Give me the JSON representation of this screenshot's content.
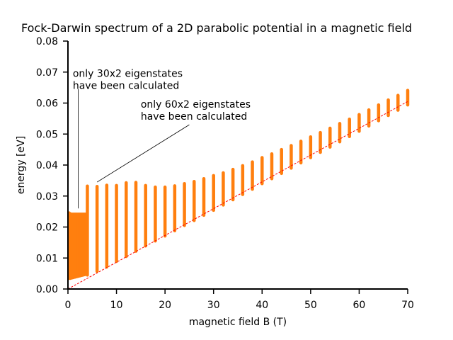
{
  "chart_data": {
    "type": "scatter",
    "title": "Fock-Darwin spectrum of a 2D parabolic potential in a magnetic field",
    "xlabel": "magnetic field B (T)",
    "ylabel": "energy [eV]",
    "xlim": [
      0,
      70
    ],
    "ylim": [
      0,
      0.08
    ],
    "xticks": [
      0,
      10,
      20,
      30,
      40,
      50,
      60,
      70
    ],
    "yticks": [
      "0.00",
      "0.01",
      "0.02",
      "0.03",
      "0.04",
      "0.05",
      "0.06",
      "0.07",
      "0.08"
    ],
    "grid": false,
    "point_color": "#ff7f0e",
    "line_color": "#ff0000",
    "dense_region": {
      "B": [
        0,
        0.25,
        0.5,
        0.75,
        1,
        1.25,
        1.5,
        1.75,
        2,
        2.25,
        2.5,
        2.75,
        3,
        3.25,
        3.5
      ],
      "min": [
        0.0035,
        0.0035,
        0.0036,
        0.0037,
        0.0038,
        0.0039,
        0.004,
        0.0041,
        0.0042,
        0.0043,
        0.0044,
        0.0045,
        0.0046,
        0.0047,
        0.0048
      ],
      "max": [
        0.0245,
        0.0242,
        0.0241,
        0.0241,
        0.0241,
        0.0241,
        0.0241,
        0.0241,
        0.0241,
        0.0241,
        0.0241,
        0.0241,
        0.0241,
        0.0241,
        0.0241
      ]
    },
    "columns": {
      "B": [
        4,
        6,
        8,
        10,
        12,
        14,
        16,
        18,
        20,
        22,
        24,
        26,
        28,
        30,
        32,
        34,
        36,
        38,
        40,
        42,
        44,
        46,
        48,
        50,
        52,
        54,
        56,
        58,
        60,
        62,
        64,
        66,
        68,
        70
      ],
      "min": [
        0.0045,
        0.0057,
        0.0071,
        0.0089,
        0.0105,
        0.0122,
        0.0139,
        0.0155,
        0.0171,
        0.0188,
        0.0205,
        0.0221,
        0.0238,
        0.0254,
        0.0271,
        0.0288,
        0.0305,
        0.0322,
        0.034,
        0.0356,
        0.0373,
        0.039,
        0.0407,
        0.0424,
        0.0441,
        0.0458,
        0.0475,
        0.0492,
        0.0509,
        0.0526,
        0.0543,
        0.056,
        0.0577,
        0.0594
      ],
      "max": [
        0.0332,
        0.0331,
        0.0335,
        0.0334,
        0.0343,
        0.0344,
        0.0334,
        0.0329,
        0.0329,
        0.0333,
        0.034,
        0.0347,
        0.0356,
        0.0366,
        0.0375,
        0.0386,
        0.0398,
        0.041,
        0.0424,
        0.0436,
        0.045,
        0.0463,
        0.0477,
        0.0491,
        0.0505,
        0.0519,
        0.0534,
        0.0548,
        0.0563,
        0.0578,
        0.0594,
        0.061,
        0.0625,
        0.0641
      ]
    },
    "reference_line": {
      "B": [
        0,
        70
      ],
      "E": [
        0,
        0.0605
      ],
      "style": "dashed"
    },
    "annotations": [
      {
        "lines": [
          "only 30x2 eigenstates",
          "have been calculated"
        ],
        "text_at": [
          1,
          0.0685
        ],
        "line_from": [
          2.1,
          0.0645
        ],
        "line_to": [
          2.1,
          0.026
        ]
      },
      {
        "lines": [
          "only 60x2 eigenstates",
          "have been calculated"
        ],
        "text_at": [
          15,
          0.0585
        ],
        "line_from": [
          25,
          0.053
        ],
        "line_to": [
          6,
          0.0345
        ]
      }
    ]
  }
}
